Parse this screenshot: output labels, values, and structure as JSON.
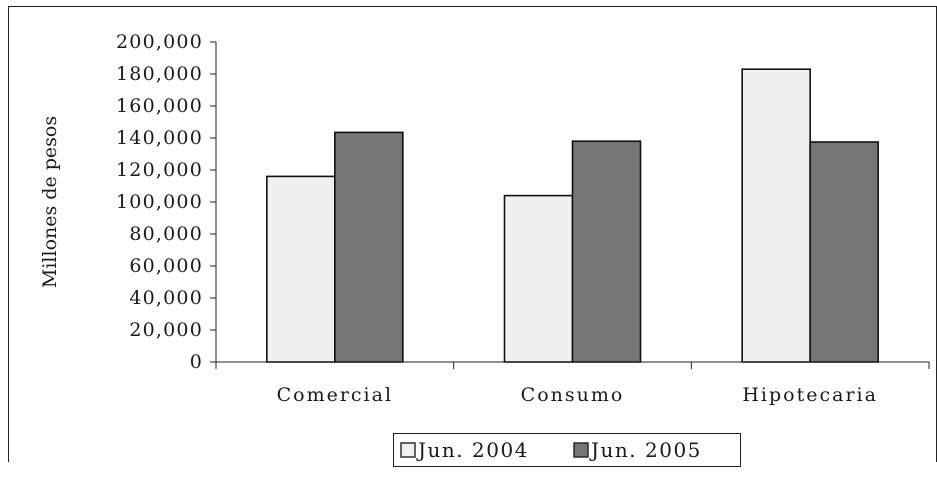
{
  "chart_data": {
    "type": "bar",
    "title": "",
    "ylabel": "Millones de pesos",
    "xlabel": "",
    "categories": [
      "Comercial",
      "Consumo",
      "Hipotecaria"
    ],
    "series": [
      {
        "name": "Jun. 2004",
        "values": [
          116000,
          104000,
          183000
        ],
        "color": "#f0f0f0"
      },
      {
        "name": "Jun. 2005",
        "values": [
          143500,
          138000,
          137500
        ],
        "color": "#767676"
      }
    ],
    "ylim": [
      0,
      200000
    ],
    "yticks": [
      "0",
      "20,000",
      "40,000",
      "60,000",
      "80,000",
      "100,000",
      "120,000",
      "140,000",
      "160,000",
      "180,000",
      "200,000"
    ],
    "grid": false,
    "legend_position": "bottom-center"
  }
}
